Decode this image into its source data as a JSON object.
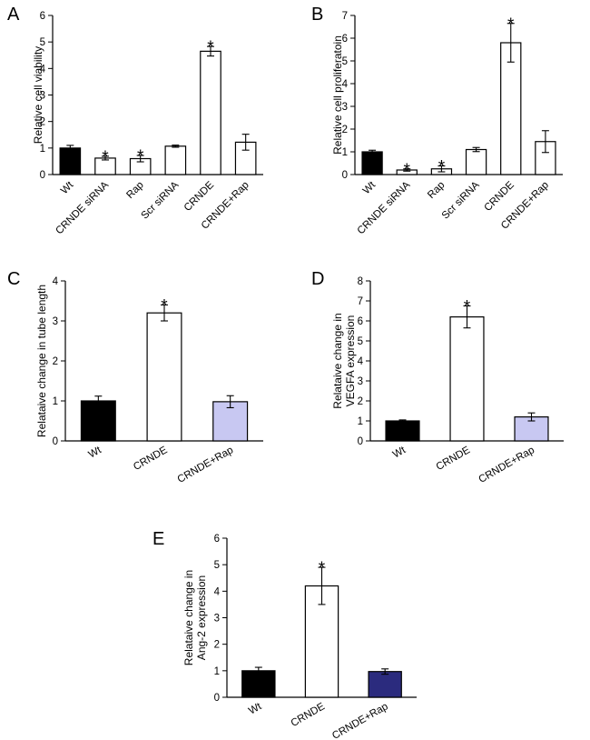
{
  "chart_data": [
    {
      "type": "bar",
      "panel": "A",
      "ylabel": "Relative cell viability",
      "ylim": [
        0,
        6
      ],
      "yticks": [
        0,
        1,
        2,
        3,
        4,
        5,
        6
      ],
      "categories": [
        "Wt",
        "CRNDE siRNA",
        "Rap",
        "Scr siRNA",
        "CRNDE",
        "CRNDE+Rap"
      ],
      "values": [
        1.0,
        0.62,
        0.6,
        1.07,
        4.65,
        1.22
      ],
      "errors": [
        0.1,
        0.07,
        0.12,
        0.04,
        0.18,
        0.3
      ],
      "significant": [
        false,
        true,
        true,
        false,
        true,
        false
      ],
      "bar_colors": [
        "#000000",
        "#ffffff",
        "#ffffff",
        "#ffffff",
        "#ffffff",
        "#ffffff"
      ],
      "star_symbol": "*"
    },
    {
      "type": "bar",
      "panel": "B",
      "ylabel": "Relative cell proliferatoin",
      "ylim": [
        0,
        7
      ],
      "yticks": [
        0,
        1,
        2,
        3,
        4,
        5,
        6,
        7
      ],
      "categories": [
        "Wt",
        "CRNDE siRNA",
        "Rap",
        "Scr siRNA",
        "CRNDE",
        "CRNDE+Rap"
      ],
      "values": [
        1.0,
        0.2,
        0.25,
        1.1,
        5.8,
        1.45
      ],
      "errors": [
        0.07,
        0.05,
        0.13,
        0.09,
        0.85,
        0.48
      ],
      "significant": [
        false,
        true,
        true,
        false,
        true,
        false
      ],
      "bar_colors": [
        "#000000",
        "#ffffff",
        "#ffffff",
        "#ffffff",
        "#ffffff",
        "#ffffff"
      ],
      "star_symbol": "*"
    },
    {
      "type": "bar",
      "panel": "C",
      "ylabel": "Relataive change in tube length",
      "ylim": [
        0,
        4
      ],
      "yticks": [
        0,
        1,
        2,
        3,
        4
      ],
      "categories": [
        "Wt",
        "CRNDE",
        "CRNDE+Rap"
      ],
      "values": [
        1.0,
        3.2,
        0.98
      ],
      "errors": [
        0.12,
        0.2,
        0.15
      ],
      "significant": [
        false,
        true,
        false
      ],
      "bar_colors": [
        "#000000",
        "#ffffff",
        "#c8c8f2"
      ],
      "star_symbol": "*"
    },
    {
      "type": "bar",
      "panel": "D",
      "ylabel": [
        "Relataive change in",
        "VEGFA expression"
      ],
      "ylim": [
        0,
        8
      ],
      "yticks": [
        0,
        1,
        2,
        3,
        4,
        5,
        6,
        7,
        8
      ],
      "categories": [
        "Wt",
        "CRNDE",
        "CRNDE+Rap"
      ],
      "values": [
        1.0,
        6.2,
        1.2
      ],
      "errors": [
        0.05,
        0.55,
        0.2
      ],
      "significant": [
        false,
        true,
        false
      ],
      "bar_colors": [
        "#000000",
        "#ffffff",
        "#c8c8f2"
      ],
      "star_symbol": "*"
    },
    {
      "type": "bar",
      "panel": "E",
      "ylabel": [
        "Relataive change in",
        "Ang-2 expression"
      ],
      "ylim": [
        0,
        6
      ],
      "yticks": [
        0,
        1,
        2,
        3,
        4,
        5,
        6
      ],
      "categories": [
        "Wt",
        "CRNDE",
        "CRNDE+Rap"
      ],
      "values": [
        1.0,
        4.2,
        0.97
      ],
      "errors": [
        0.13,
        0.7,
        0.1
      ],
      "significant": [
        false,
        true,
        false
      ],
      "bar_colors": [
        "#000000",
        "#ffffff",
        "#2b2b7e"
      ],
      "star_symbol": "*"
    }
  ]
}
